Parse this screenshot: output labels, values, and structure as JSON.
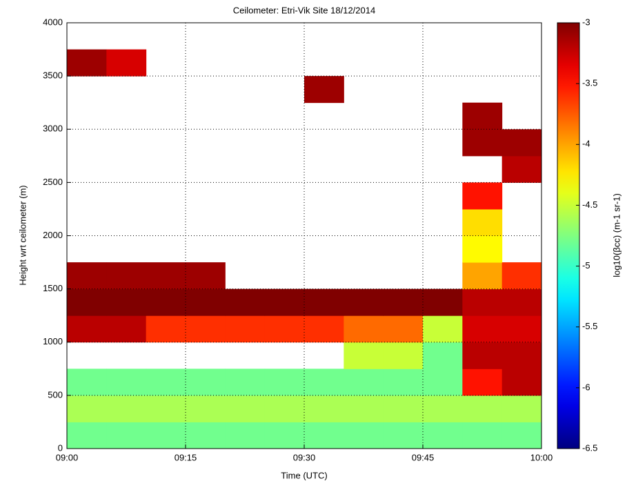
{
  "chart_data": {
    "type": "heatmap",
    "title": "Ceilometer: Etri-Vik Site 18/12/2014",
    "x_label": "Time (UTC)",
    "y_label": "Height wrt ceilometer (m)",
    "colorbar_label": "log10(βcc) (m-1 sr-1)",
    "x_bins": [
      0,
      5,
      10,
      15,
      20,
      25,
      30,
      35,
      40,
      45,
      50,
      55,
      60
    ],
    "y_bins": [
      0,
      250,
      500,
      750,
      1000,
      1250,
      1500,
      1750,
      2000,
      2250,
      2500,
      2750,
      3000,
      3250,
      3500,
      3750,
      4000
    ],
    "z": [
      [
        -4.8,
        -4.8,
        -4.8,
        -4.8,
        -4.8,
        -4.8,
        -4.8,
        -4.8,
        -4.8,
        -4.8,
        -4.8,
        -4.8
      ],
      [
        -4.6,
        -4.6,
        -4.6,
        -4.6,
        -4.6,
        -4.6,
        -4.6,
        -4.6,
        -4.6,
        -4.6,
        -4.6,
        -4.6
      ],
      [
        -4.8,
        -4.8,
        -4.8,
        -4.8,
        -4.8,
        -4.8,
        -4.8,
        -4.8,
        -4.8,
        -4.8,
        -3.5,
        -3.2
      ],
      [
        null,
        null,
        null,
        null,
        null,
        null,
        null,
        -4.5,
        -4.5,
        -4.8,
        -3.2,
        -3.2
      ],
      [
        -3.2,
        -3.2,
        -3.6,
        -3.6,
        -3.6,
        -3.6,
        -3.6,
        -3.8,
        -3.8,
        -4.5,
        -3.3,
        -3.3
      ],
      [
        -3.0,
        -3.0,
        -3.0,
        -3.0,
        -3.0,
        -3.0,
        -3.0,
        -3.0,
        -3.0,
        -3.0,
        -3.2,
        -3.2
      ],
      [
        -3.1,
        -3.1,
        -3.1,
        -3.1,
        null,
        null,
        null,
        null,
        null,
        null,
        -4.0,
        -3.6
      ],
      [
        null,
        null,
        null,
        null,
        null,
        null,
        null,
        null,
        null,
        null,
        -4.3,
        null
      ],
      [
        null,
        null,
        null,
        null,
        null,
        null,
        null,
        null,
        null,
        null,
        -4.2,
        null
      ],
      [
        null,
        null,
        null,
        null,
        null,
        null,
        null,
        null,
        null,
        null,
        -3.5,
        null
      ],
      [
        null,
        null,
        null,
        null,
        null,
        null,
        null,
        null,
        null,
        null,
        null,
        -3.2
      ],
      [
        null,
        null,
        null,
        null,
        null,
        null,
        null,
        null,
        null,
        null,
        -3.1,
        -3.1
      ],
      [
        null,
        null,
        null,
        null,
        null,
        null,
        null,
        null,
        null,
        null,
        -3.1,
        null
      ],
      [
        null,
        null,
        null,
        null,
        null,
        null,
        -3.1,
        null,
        null,
        null,
        null,
        null
      ],
      [
        -3.1,
        -3.3,
        null,
        null,
        null,
        null,
        null,
        null,
        null,
        null,
        null,
        null
      ],
      [
        null,
        null,
        null,
        null,
        null,
        null,
        null,
        null,
        null,
        null,
        null,
        null
      ]
    ],
    "xlim": [
      0,
      60
    ],
    "xticks": [
      {
        "value": 0,
        "label": "09:00"
      },
      {
        "value": 15,
        "label": "09:15"
      },
      {
        "value": 30,
        "label": "09:30"
      },
      {
        "value": 45,
        "label": "09:45"
      },
      {
        "value": 60,
        "label": "10:00"
      }
    ],
    "ylim": [
      0,
      4000
    ],
    "yticks": [
      0,
      500,
      1000,
      1500,
      2000,
      2500,
      3000,
      3500,
      4000
    ],
    "zlim": [
      -6.5,
      -3
    ],
    "zticks": [
      -3,
      -3.5,
      -4,
      -4.5,
      -5,
      -5.5,
      -6,
      -6.5
    ],
    "colormap": "jet",
    "grid": true
  }
}
